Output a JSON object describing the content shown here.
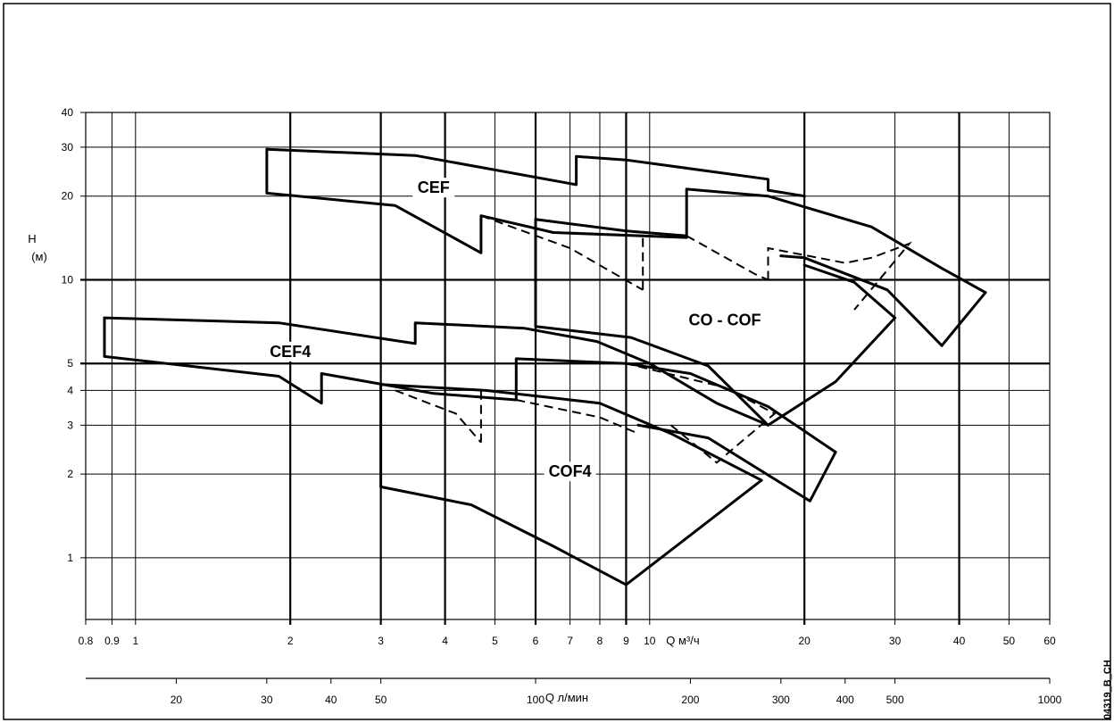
{
  "chart_data": {
    "type": "line",
    "title": "",
    "ylabel": "H",
    "ylabel_unit": "(м)",
    "xlabel_top": "Q",
    "xlabel_top_unit": "м³/ч",
    "xlabel_bottom": "Q",
    "xlabel_bottom_unit": "л/мин",
    "x_scale": "log",
    "y_scale": "log",
    "xlim": [
      0.8,
      60
    ],
    "ylim": [
      0.6,
      40
    ],
    "grid": true,
    "y_ticks": [
      "1",
      "2",
      "3",
      "4",
      "5",
      "10",
      "20",
      "30",
      "40"
    ],
    "x_ticks_top": [
      "0.8",
      "0.9",
      "1",
      "2",
      "3",
      "4",
      "5",
      "6",
      "7",
      "8",
      "9",
      "10",
      "20",
      "30",
      "40",
      "50",
      "60"
    ],
    "x_ticks_bottom": [
      "20",
      "30",
      "40",
      "50",
      "100",
      "200",
      "300",
      "400",
      "500",
      "1000"
    ],
    "regions": [
      {
        "name": "CEF",
        "label_x": 3.8,
        "label_y": 21
      },
      {
        "name": "CO - COF",
        "label_x": 14.0,
        "label_y": 7.0
      },
      {
        "name": "CEF4",
        "label_x": 2.0,
        "label_y": 5.4
      },
      {
        "name": "COF4",
        "label_x": 7.0,
        "label_y": 2.0
      }
    ],
    "series": [
      {
        "kind": "solid",
        "points": [
          [
            1.8,
            29.5
          ],
          [
            3.5,
            28
          ],
          [
            7.2,
            22
          ],
          [
            7.2,
            27.8
          ],
          [
            9,
            27
          ],
          [
            17,
            23
          ],
          [
            17,
            21
          ],
          [
            20,
            20
          ]
        ]
      },
      {
        "kind": "solid",
        "points": [
          [
            1.8,
            29.5
          ],
          [
            1.8,
            20.5
          ],
          [
            3.2,
            18.5
          ],
          [
            4.7,
            12.5
          ],
          [
            4.7,
            17
          ],
          [
            6.5,
            14.8
          ],
          [
            11.8,
            14.2
          ],
          [
            11.8,
            21.2
          ],
          [
            17,
            20
          ],
          [
            27,
            15.5
          ],
          [
            37,
            11
          ],
          [
            45,
            9
          ]
        ]
      },
      {
        "kind": "solid",
        "points": [
          [
            45,
            9
          ],
          [
            37,
            5.8
          ]
        ]
      },
      {
        "kind": "solid",
        "points": [
          [
            37,
            5.8
          ],
          [
            29,
            9.2
          ],
          [
            20,
            12
          ],
          [
            18,
            12.2
          ]
        ]
      },
      {
        "kind": "solid",
        "points": [
          [
            6,
            16.5
          ],
          [
            9,
            15
          ],
          [
            11.8,
            14.4
          ]
        ]
      },
      {
        "kind": "solid",
        "points": [
          [
            6,
            16.5
          ],
          [
            6,
            6.8
          ],
          [
            9.2,
            6.2
          ],
          [
            13,
            4.9
          ],
          [
            17,
            3.0
          ],
          [
            23,
            4.3
          ],
          [
            30,
            7.3
          ]
        ]
      },
      {
        "kind": "solid",
        "points": [
          [
            30,
            7.3
          ],
          [
            25,
            9.8
          ],
          [
            20,
            11.3
          ]
        ]
      },
      {
        "kind": "solid",
        "points": [
          [
            0.87,
            7.3
          ],
          [
            1.9,
            7
          ],
          [
            3.5,
            5.9
          ],
          [
            3.5,
            7.0
          ],
          [
            5.7,
            6.7
          ],
          [
            7.9,
            6.0
          ],
          [
            10,
            5.0
          ],
          [
            13.5,
            3.6
          ],
          [
            17,
            3.0
          ]
        ]
      },
      {
        "kind": "solid",
        "points": [
          [
            0.87,
            7.3
          ],
          [
            0.87,
            5.3
          ],
          [
            1.9,
            4.5
          ],
          [
            2.3,
            3.6
          ],
          [
            2.3,
            4.6
          ],
          [
            3.8,
            3.9
          ],
          [
            5.5,
            3.7
          ],
          [
            5.5,
            5.2
          ],
          [
            9,
            5
          ],
          [
            12,
            4.6
          ],
          [
            17,
            3.5
          ],
          [
            23,
            2.4
          ]
        ]
      },
      {
        "kind": "solid",
        "points": [
          [
            23,
            2.4
          ],
          [
            20.5,
            1.6
          ],
          [
            13,
            2.7
          ],
          [
            9.5,
            3.0
          ]
        ]
      },
      {
        "kind": "solid",
        "points": [
          [
            3,
            4.2
          ],
          [
            3,
            1.8
          ],
          [
            4.5,
            1.55
          ],
          [
            6.5,
            1.1
          ],
          [
            9,
            0.8
          ]
        ]
      },
      {
        "kind": "solid",
        "points": [
          [
            9,
            0.8
          ],
          [
            16.5,
            1.9
          ],
          [
            11,
            2.8
          ],
          [
            8,
            3.6
          ],
          [
            4.8,
            4.0
          ],
          [
            3,
            4.2
          ]
        ]
      },
      {
        "kind": "dashed",
        "points": [
          [
            4.7,
            17
          ],
          [
            7,
            13
          ],
          [
            9.7,
            9.2
          ]
        ]
      },
      {
        "kind": "dashed",
        "points": [
          [
            9.7,
            9.2
          ],
          [
            9.7,
            15
          ]
        ]
      },
      {
        "kind": "dashed",
        "points": [
          [
            11.8,
            14.4
          ],
          [
            16,
            10.5
          ],
          [
            17,
            10
          ]
        ]
      },
      {
        "kind": "dashed",
        "points": [
          [
            17,
            10
          ],
          [
            17,
            13
          ],
          [
            24,
            11.5
          ],
          [
            27,
            12
          ],
          [
            32,
            13.5
          ],
          [
            25,
            7.8
          ]
        ]
      },
      {
        "kind": "dashed",
        "points": [
          [
            3.2,
            4.0
          ],
          [
            4.2,
            3.3
          ],
          [
            4.7,
            2.6
          ]
        ]
      },
      {
        "kind": "dashed",
        "points": [
          [
            4.7,
            2.6
          ],
          [
            4.7,
            4.0
          ]
        ]
      },
      {
        "kind": "dashed",
        "points": [
          [
            5.5,
            3.7
          ],
          [
            8,
            3.2
          ],
          [
            9.5,
            2.8
          ]
        ]
      },
      {
        "kind": "dashed",
        "points": [
          [
            11,
            3.0
          ],
          [
            13.5,
            2.2
          ],
          [
            17.5,
            3.3
          ],
          [
            14,
            4.1
          ],
          [
            9,
            5.0
          ]
        ]
      }
    ]
  },
  "reference_code": "04319_B_CH"
}
